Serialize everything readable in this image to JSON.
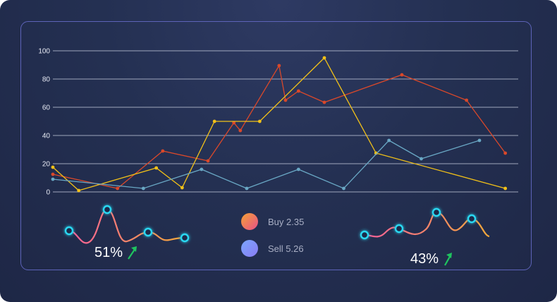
{
  "chart_data": {
    "type": "line",
    "ylim": [
      0,
      100
    ],
    "yticks": [
      "0",
      "20",
      "40",
      "60",
      "80",
      "100"
    ],
    "grid": true,
    "xlim": [
      0,
      36
    ],
    "series": [
      {
        "color": "#d9482a",
        "points": [
          [
            0,
            12.5
          ],
          [
            5,
            2.5
          ],
          [
            8.5,
            29
          ],
          [
            12,
            22
          ],
          [
            14,
            49
          ],
          [
            14.5,
            43.5
          ],
          [
            17.5,
            89.5
          ],
          [
            18,
            65
          ],
          [
            19,
            71.5
          ],
          [
            21,
            63.5
          ],
          [
            27,
            83
          ],
          [
            32,
            65
          ],
          [
            35,
            27.5
          ]
        ]
      },
      {
        "color": "#f2c118",
        "points": [
          [
            0,
            17.5
          ],
          [
            2,
            1
          ],
          [
            8,
            17
          ],
          [
            10,
            3
          ],
          [
            12.5,
            50
          ],
          [
            16,
            50
          ],
          [
            21,
            95
          ],
          [
            25,
            27.5
          ],
          [
            35,
            2.5
          ]
        ]
      },
      {
        "color": "#69a7c4",
        "points": [
          [
            0,
            9
          ],
          [
            7,
            2.5
          ],
          [
            11.5,
            16
          ],
          [
            15,
            2.5
          ],
          [
            19,
            16
          ],
          [
            22.5,
            2.5
          ],
          [
            26,
            36.5
          ],
          [
            28.5,
            23.5
          ],
          [
            33,
            36.5
          ]
        ]
      }
    ]
  },
  "legend": [
    {
      "label": "Buy 2.35",
      "color_from": "#f4a235",
      "color_to": "#e8508a"
    },
    {
      "label": "Sell 5.26",
      "color_from": "#7aa6ff",
      "color_to": "#8a7cf2"
    }
  ],
  "sparklines": [
    {
      "percent": "51%",
      "trend": "up",
      "color_from": "#f8609a",
      "color_to": "#f2a83a",
      "marker_color": "#29d8f2"
    },
    {
      "percent": "43%",
      "trend": "up",
      "color_from": "#f8609a",
      "color_to": "#f2a83a",
      "marker_color": "#29d8f2"
    }
  ],
  "colors": {
    "grid": "#c9cfe0",
    "arrow": "#1fc45f",
    "panel_border": "#5d63b8"
  }
}
